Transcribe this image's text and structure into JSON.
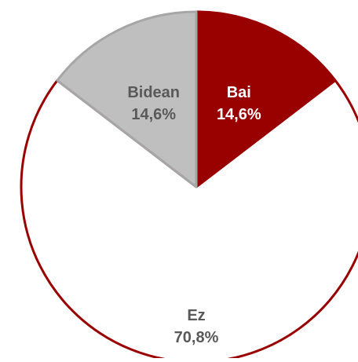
{
  "chart_data": {
    "type": "pie",
    "title": "",
    "slices": [
      {
        "label": "Bai",
        "value": 14.6,
        "value_label": "14,6%",
        "color": "#990000",
        "label_color": "#ffffff"
      },
      {
        "label": "Ez",
        "value": 70.8,
        "value_label": "70,8%",
        "color": "#ffffff",
        "label_color": "#595959"
      },
      {
        "label": "Bidean",
        "value": 14.6,
        "value_label": "14,6%",
        "color": "#bfbfbf",
        "label_color": "#595959"
      }
    ],
    "outline_colors": {
      "Bai": "#990000",
      "Ez": "#990000",
      "Bidean": "#a6a6a6"
    },
    "start_angle_deg": 0,
    "direction": "clockwise"
  }
}
